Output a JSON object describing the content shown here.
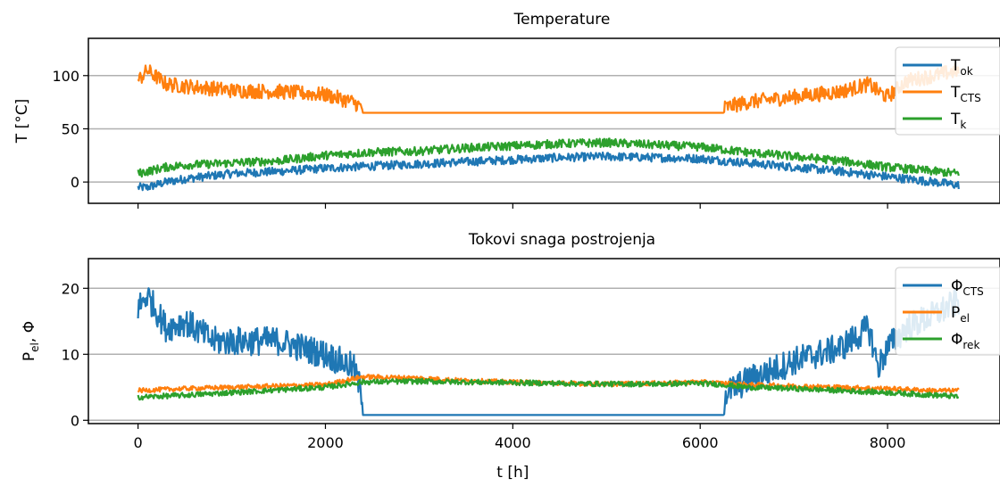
{
  "chart_data": [
    {
      "type": "line",
      "title": "Temperature",
      "xlabel": "",
      "ylabel": "T [°C]",
      "xlim": [
        -530,
        9200
      ],
      "ylim": [
        -20,
        135
      ],
      "grid": "y",
      "legend_placement": "top-right",
      "x_ticks": [
        0,
        2000,
        4000,
        6000,
        8000
      ],
      "x_tick_labels_shown": false,
      "y_ticks": [
        0,
        50,
        100
      ],
      "y_tick_labels": [
        "0",
        "50",
        "100"
      ],
      "legend": [
        {
          "base": "T",
          "sub": "ok",
          "color": "#1f77b4"
        },
        {
          "base": "T",
          "sub": "CTS",
          "color": "#ff7f0e"
        },
        {
          "base": "T",
          "sub": "k",
          "color": "#2ca02c"
        }
      ],
      "series": [
        {
          "name": "T_ok",
          "color": "#1f77b4",
          "x": [
            0,
            100,
            300,
            500,
            800,
            1000,
            1500,
            2000,
            2500,
            3000,
            3500,
            4000,
            4500,
            5000,
            5500,
            6000,
            6500,
            7000,
            7500,
            8000,
            8500,
            8760
          ],
          "y": [
            -5,
            -5,
            0,
            3,
            6,
            8,
            10,
            13,
            15,
            17,
            19,
            21,
            23,
            24,
            23,
            22,
            18,
            14,
            10,
            5,
            0,
            -3
          ],
          "noise": 4
        },
        {
          "name": "T_CTS",
          "color": "#ff7f0e",
          "x": [
            0,
            100,
            300,
            500,
            800,
            1000,
            1500,
            2000,
            2300,
            2390,
            2400,
            6250,
            6260,
            6500,
            7000,
            7500,
            7800,
            7900,
            8000,
            8200,
            8500,
            8760
          ],
          "y": [
            95,
            105,
            92,
            90,
            88,
            86,
            85,
            82,
            75,
            70,
            65,
            65,
            70,
            75,
            80,
            85,
            92,
            85,
            80,
            95,
            100,
            105
          ],
          "noise": 7,
          "flat_range": [
            2400,
            6250
          ]
        },
        {
          "name": "T_k",
          "color": "#2ca02c",
          "x": [
            0,
            100,
            300,
            500,
            800,
            1000,
            1500,
            2000,
            2500,
            3000,
            3500,
            4000,
            4500,
            5000,
            5500,
            6000,
            6500,
            7000,
            7500,
            8000,
            8500,
            8760
          ],
          "y": [
            8,
            10,
            14,
            16,
            17,
            18,
            20,
            25,
            28,
            29,
            32,
            34,
            36,
            37,
            35,
            33,
            28,
            24,
            20,
            14,
            10,
            8
          ],
          "noise": 4
        }
      ]
    },
    {
      "type": "line",
      "title": "Tokovi snaga postrojenja",
      "xlabel": "t [h]",
      "ylabel": "P_el, Φ",
      "xlim": [
        -530,
        9200
      ],
      "ylim": [
        -0.5,
        24.5
      ],
      "grid": "y",
      "legend_placement": "top-right",
      "x_ticks": [
        0,
        2000,
        4000,
        6000,
        8000
      ],
      "x_tick_labels": [
        "0",
        "2000",
        "4000",
        "6000",
        "8000"
      ],
      "y_ticks": [
        0,
        10,
        20
      ],
      "y_tick_labels": [
        "0",
        "10",
        "20"
      ],
      "legend": [
        {
          "base": "Φ",
          "sub": "CTS",
          "color": "#1f77b4"
        },
        {
          "base": "P",
          "sub": "el",
          "color": "#ff7f0e"
        },
        {
          "base": "Φ",
          "sub": "rek",
          "color": "#2ca02c"
        }
      ],
      "series": [
        {
          "name": "Φ_CTS",
          "color": "#1f77b4",
          "x": [
            0,
            100,
            300,
            500,
            800,
            1000,
            1500,
            2000,
            2300,
            2390,
            2400,
            6250,
            6260,
            6500,
            7000,
            7500,
            7800,
            7900,
            8000,
            8200,
            8500,
            8760
          ],
          "y": [
            17,
            19,
            14,
            15,
            12,
            12,
            12,
            10,
            8,
            4,
            0.8,
            0.8,
            4,
            6,
            9,
            11,
            14,
            8,
            11,
            14,
            16,
            18
          ],
          "noise": 2.2,
          "flat_range": [
            2400,
            6250
          ]
        },
        {
          "name": "P_el",
          "color": "#ff7f0e",
          "x": [
            0,
            500,
            1000,
            1500,
            2000,
            2400,
            3000,
            3500,
            4000,
            4500,
            5000,
            5500,
            6000,
            6250,
            6500,
            7000,
            7500,
            8000,
            8500,
            8760
          ],
          "y": [
            4.5,
            4.8,
            5.0,
            5.2,
            5.4,
            6.6,
            6.4,
            6.0,
            5.8,
            5.6,
            5.5,
            5.6,
            5.8,
            5.6,
            5.4,
            5.2,
            5.0,
            4.8,
            4.5,
            4.5
          ],
          "noise": 0.35
        },
        {
          "name": "Φ_rek",
          "color": "#2ca02c",
          "x": [
            0,
            500,
            1000,
            1500,
            2000,
            2400,
            3000,
            3500,
            4000,
            4500,
            5000,
            5500,
            6000,
            6250,
            6500,
            7000,
            7500,
            8000,
            8500,
            8760
          ],
          "y": [
            3.5,
            3.8,
            4.2,
            4.6,
            5.0,
            5.8,
            5.9,
            5.8,
            5.7,
            5.6,
            5.5,
            5.5,
            5.6,
            5.4,
            5.0,
            4.8,
            4.5,
            4.2,
            3.8,
            3.6
          ],
          "noise": 0.4
        }
      ]
    }
  ]
}
